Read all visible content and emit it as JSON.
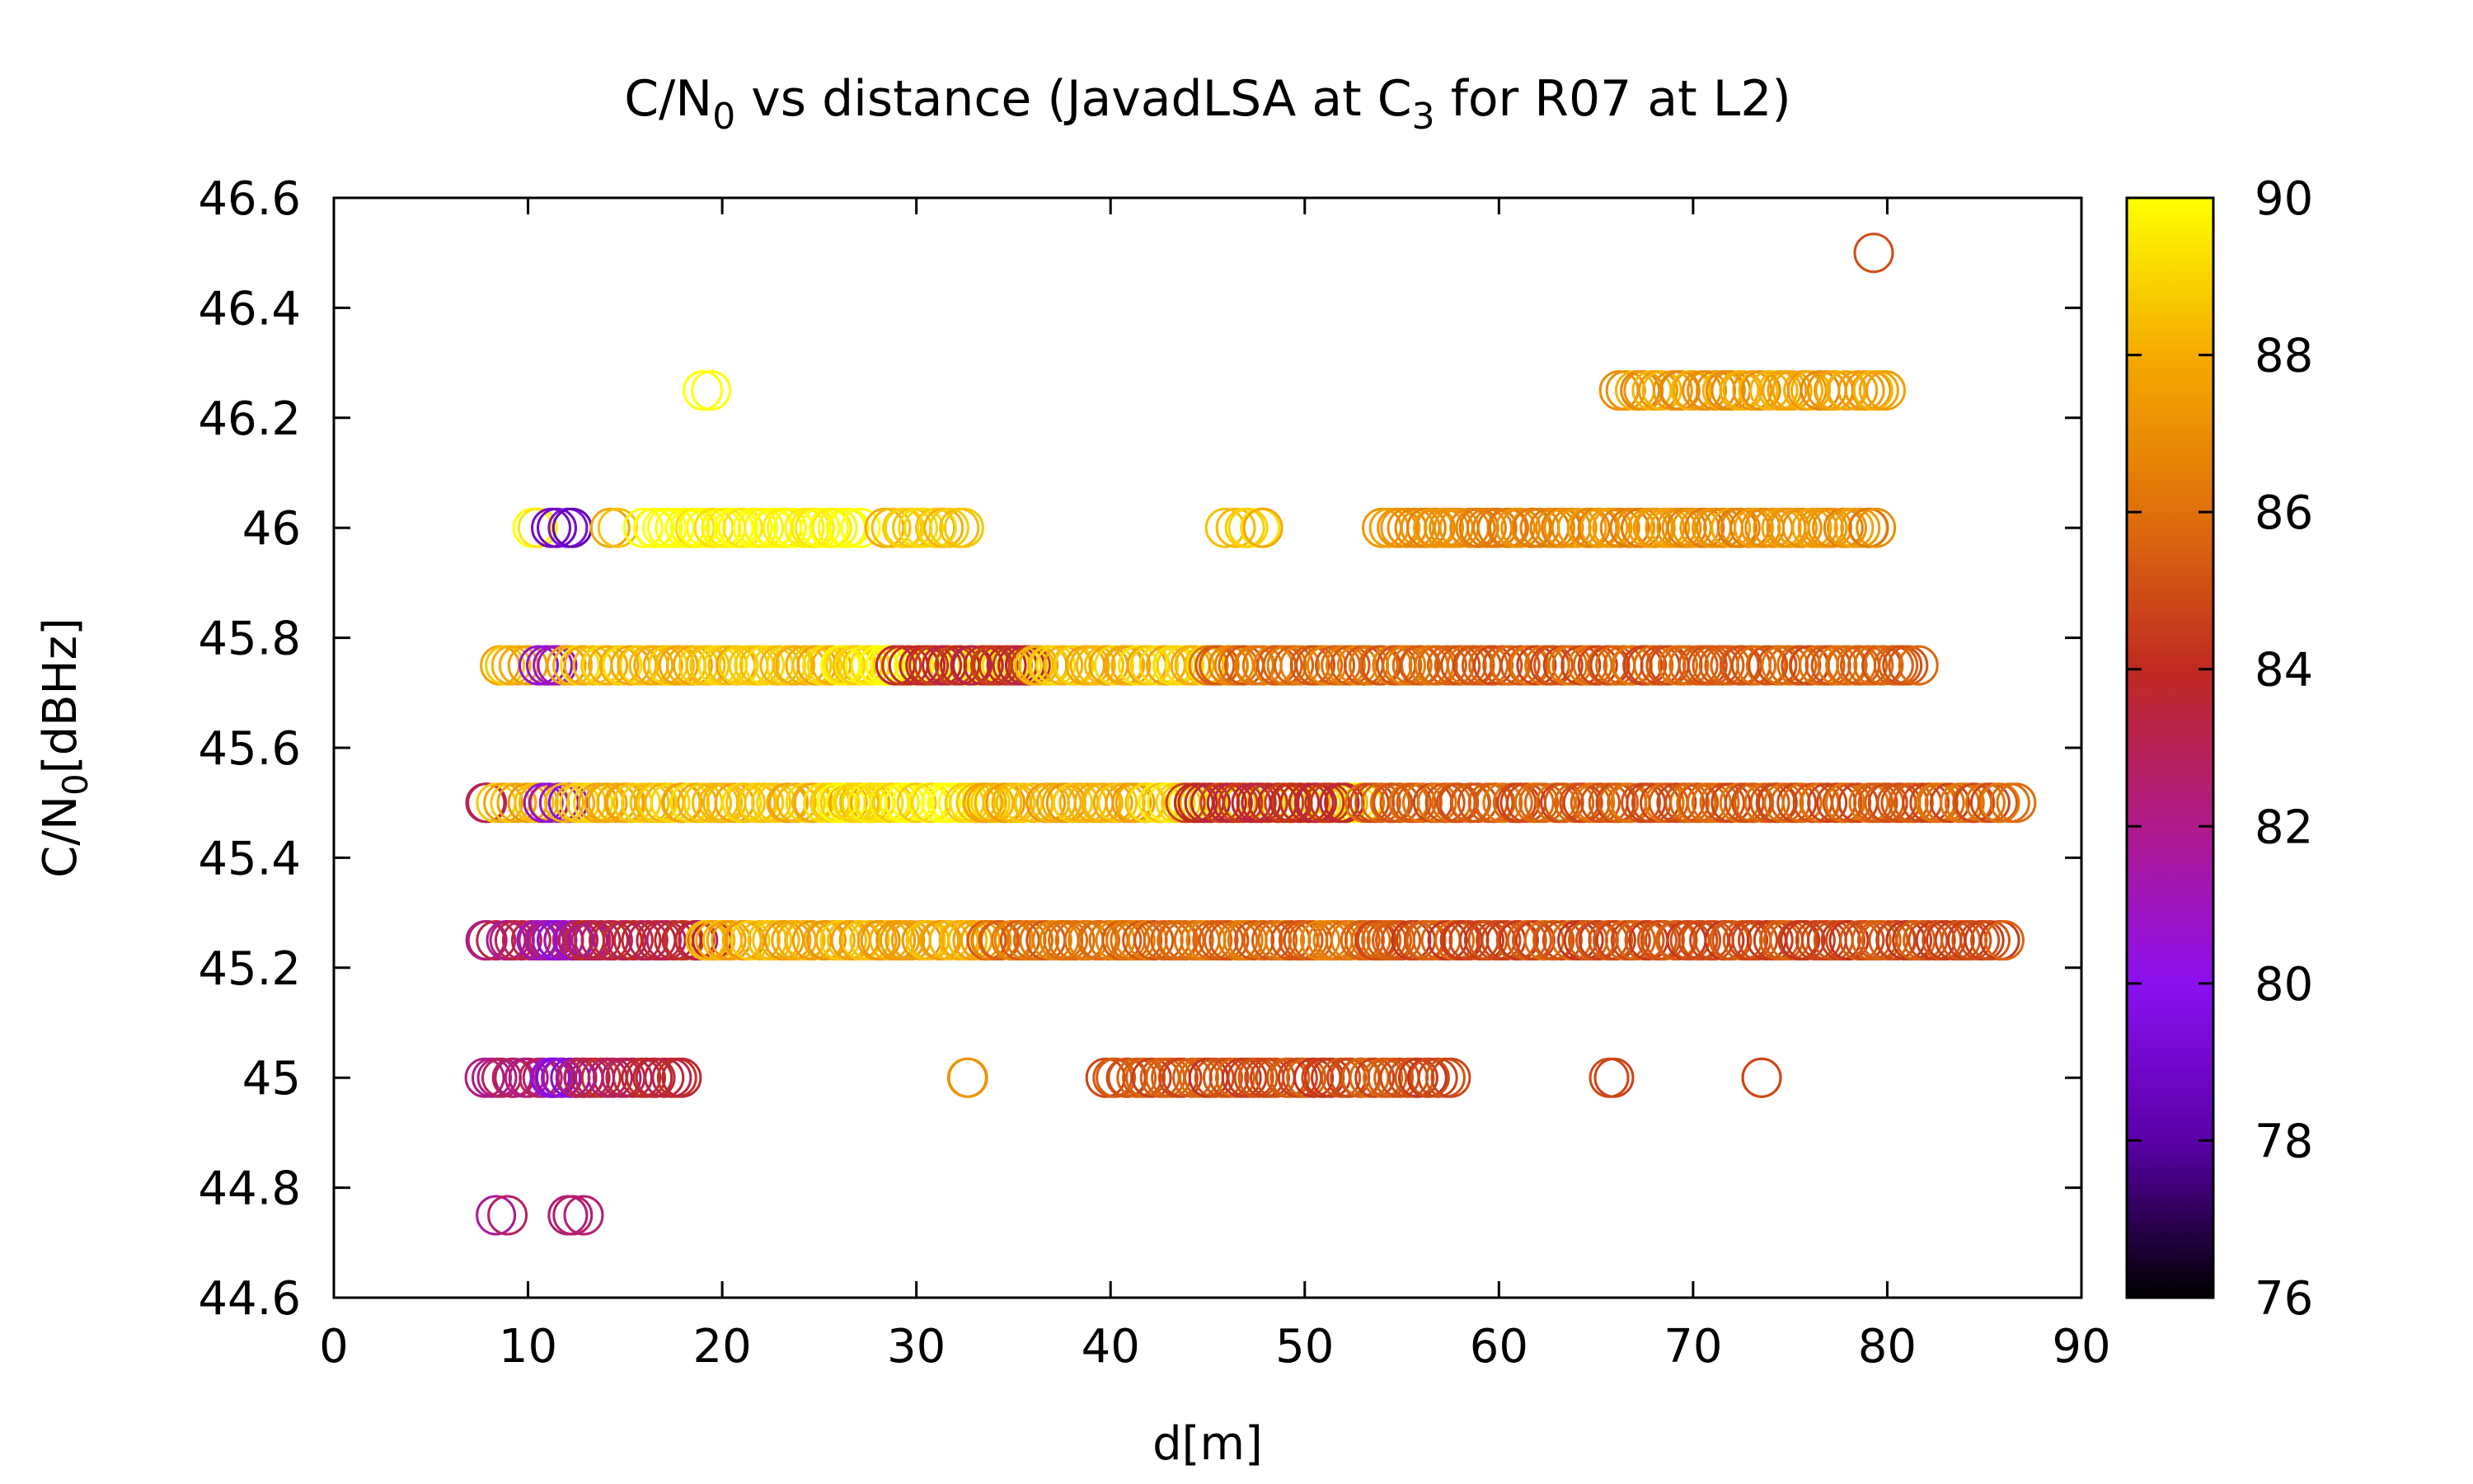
{
  "chart_data": {
    "type": "scatter",
    "title": "C/N0 vs distance (JavadLSA at C3 for R07 at L2)",
    "title_parts": {
      "prefix": "C/N",
      "sub1": "0",
      "middle": " vs distance (JavadLSA at C",
      "sub2": "3",
      "suffix": " for R07 at L2)"
    },
    "xlabel": "d[m]",
    "ylabel": "C/N0[dBHz]",
    "ylabel_parts": {
      "prefix": "C/N",
      "sub": "0",
      "suffix": "[dBHz]"
    },
    "xlim": [
      0,
      90
    ],
    "ylim": [
      44.6,
      46.6
    ],
    "xticks": [
      0,
      10,
      20,
      30,
      40,
      50,
      60,
      70,
      80,
      90
    ],
    "xtick_labels": [
      "0",
      "10",
      "20",
      "30",
      "40",
      "50",
      "60",
      "70",
      "80",
      "90"
    ],
    "yticks": [
      44.6,
      44.8,
      45,
      45.2,
      45.4,
      45.6,
      45.8,
      46,
      46.2,
      46.4,
      46.6
    ],
    "ytick_labels": [
      "44.6",
      "44.8",
      "45",
      "45.2",
      "45.4",
      "45.6",
      "45.8",
      "46",
      "46.2",
      "46.4",
      "46.6"
    ],
    "grid": false,
    "marker": "open-circle",
    "colorbar": {
      "range": [
        76,
        90
      ],
      "ticks": [
        76,
        78,
        80,
        82,
        84,
        86,
        88,
        90
      ],
      "tick_labels": [
        "76",
        "78",
        "80",
        "82",
        "84",
        "86",
        "88",
        "90"
      ],
      "palette": [
        "#000000",
        "#5a00a8",
        "#8c10f0",
        "#b01a8c",
        "#c02a20",
        "#e0700a",
        "#f5ab00",
        "#ffff00"
      ]
    },
    "bands": [
      {
        "y": 44.75,
        "segments": [
          [
            8.3,
            8.9,
            82
          ],
          [
            12.0,
            12.8,
            82
          ]
        ]
      },
      {
        "y": 45.0,
        "segments": [
          [
            7.7,
            11.8,
            82.5
          ],
          [
            11.0,
            12.8,
            80
          ],
          [
            12.5,
            18.0,
            83.5
          ],
          [
            32.5,
            32.8,
            87
          ],
          [
            39.7,
            57.5,
            85
          ],
          [
            65.7,
            65.9,
            85
          ],
          [
            73.4,
            73.5,
            85
          ]
        ]
      },
      {
        "y": 45.25,
        "segments": [
          [
            7.7,
            12.5,
            82.5
          ],
          [
            10.5,
            13.0,
            80.5
          ],
          [
            12.5,
            19.5,
            83.5
          ],
          [
            19.0,
            34.0,
            88
          ],
          [
            33.5,
            54.0,
            86
          ],
          [
            53.5,
            86.0,
            85
          ]
        ]
      },
      {
        "y": 45.5,
        "segments": [
          [
            7.8,
            8.0,
            83
          ],
          [
            8.5,
            11.0,
            88
          ],
          [
            10.8,
            12.0,
            80.5
          ],
          [
            12.0,
            28.0,
            88.5
          ],
          [
            26.0,
            34.0,
            89.5
          ],
          [
            33.0,
            42.0,
            88
          ],
          [
            42.0,
            53.0,
            89
          ],
          [
            44.0,
            52.0,
            84
          ],
          [
            53.0,
            86.5,
            85.5
          ]
        ]
      },
      {
        "y": 45.75,
        "segments": [
          [
            8.5,
            10.0,
            88
          ],
          [
            10.5,
            12.0,
            81
          ],
          [
            12.0,
            28.0,
            88.5
          ],
          [
            26.0,
            36.0,
            89.5
          ],
          [
            29.0,
            36.0,
            84
          ],
          [
            36.0,
            46.0,
            88.5
          ],
          [
            45.0,
            56.0,
            86
          ],
          [
            56.0,
            81.5,
            85.5
          ]
        ]
      },
      {
        "y": 46.0,
        "segments": [
          [
            10.2,
            10.4,
            89.5
          ],
          [
            11.2,
            12.3,
            79
          ],
          [
            14.3,
            14.5,
            88
          ],
          [
            16.0,
            27.0,
            90
          ],
          [
            28.5,
            32.5,
            88.5
          ],
          [
            46.0,
            48.0,
            88.5
          ],
          [
            54.0,
            79.5,
            87
          ]
        ]
      },
      {
        "y": 46.25,
        "segments": [
          [
            19.0,
            19.4,
            90
          ],
          [
            66.3,
            80.0,
            87.5
          ]
        ]
      },
      {
        "y": 46.5,
        "segments": [
          [
            79.3,
            79.3,
            85.5
          ]
        ]
      }
    ]
  }
}
